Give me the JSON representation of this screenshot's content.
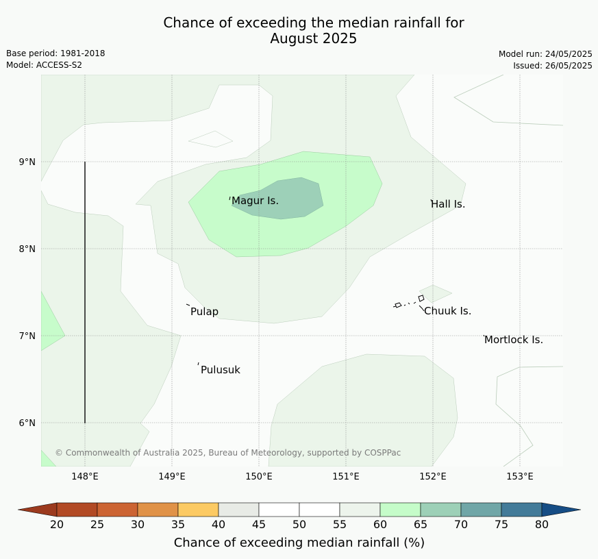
{
  "title": {
    "line1": "Chance of exceeding the median rainfall for",
    "line2": "August 2025"
  },
  "meta": {
    "base_period": "Base period: 1981-2018",
    "model": "Model: ACCESS-S2",
    "model_run": "Model run: 24/05/2025",
    "issued": "Issued: 26/05/2025"
  },
  "map": {
    "lat_labels": [
      "9°N",
      "8°N",
      "7°N",
      "6°N"
    ],
    "lon_labels": [
      "148°E",
      "149°E",
      "150°E",
      "151°E",
      "152°E",
      "153°E"
    ],
    "places": [
      "Magur Is.",
      "Hall Is.",
      "Pulap",
      "Chuuk Is.",
      "Mortlock Is.",
      "Pulusuk"
    ],
    "copyright": "© Commonwealth of Australia 2025, Bureau of Meteorology, supported by COSPPac"
  },
  "colorbar": {
    "title": "Chance of exceeding median rainfall (%)",
    "labels": [
      "20",
      "25",
      "30",
      "35",
      "40",
      "45",
      "50",
      "55",
      "60",
      "65",
      "70",
      "75",
      "80"
    ],
    "colors": [
      "#b24a25",
      "#cc6433",
      "#e09248",
      "#fcca63",
      "#e8ebe6",
      "#ffffff",
      "#ffffff",
      "#edf4ec",
      "#c5fcc9",
      "#9dd0b7",
      "#70a6a7",
      "#437b99"
    ],
    "under_color": "#9c3a1e",
    "over_color": "#164d85"
  }
}
